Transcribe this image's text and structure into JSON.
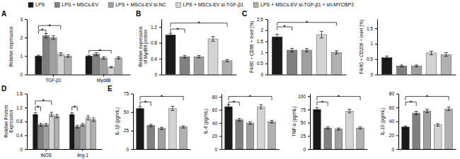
{
  "chart_data": [
    {
      "type": "bar",
      "title": "A",
      "categories": [
        "TGF-β1",
        "Myd88"
      ],
      "series": [
        {
          "name": "LPS",
          "color": "#1a1a1a",
          "values": [
            1.0,
            1.0
          ],
          "errors": [
            0.05,
            0.05
          ]
        },
        {
          "name": "LPS + MSCs-EV",
          "color": "#808080",
          "values": [
            2.1,
            1.1
          ],
          "errors": [
            0.12,
            0.08
          ]
        },
        {
          "name": "LPS + MSCs-EV si-NC",
          "color": "#a0a0a0",
          "values": [
            2.0,
            0.9
          ],
          "errors": [
            0.1,
            0.07
          ]
        },
        {
          "name": "LPS + MSCs-EV si-TGF-β1",
          "color": "#d3d3d3",
          "values": [
            1.1,
            0.4
          ],
          "errors": [
            0.08,
            0.04
          ]
        },
        {
          "name": "LPS + MSCs-EV si-TGF-β1 + sh-MYCBP2",
          "color": "#b0b0b0",
          "values": [
            1.0,
            0.9
          ],
          "errors": [
            0.07,
            0.06
          ]
        }
      ],
      "ylabel": "Relative expression",
      "ylim": [
        0,
        3.0
      ],
      "yticks": [
        0,
        1,
        2,
        3
      ],
      "legend": "top",
      "annotations": [
        {
          "text": "*",
          "category": 0,
          "series": [
            0,
            1
          ],
          "y": [
            2.2,
            2.4
          ]
        },
        {
          "text": "*",
          "category": 0,
          "series": [
            0,
            3
          ],
          "y": [
            2.45,
            2.65
          ]
        },
        {
          "text": "*",
          "category": 1,
          "series": [
            0,
            3
          ],
          "y": [
            1.15,
            1.3
          ]
        }
      ]
    },
    {
      "type": "bar",
      "title": "B",
      "categories": [
        "LPS",
        "LPS + MSCs-EV",
        "LPS + MSCs-EV si-NC",
        "LPS + MSCs-EV si-TGF-β1",
        "LPS + MSCs-EV si-TGF-β1 + sh-MYCBP2"
      ],
      "colors": [
        "#1a1a1a",
        "#808080",
        "#a0a0a0",
        "#d3d3d3",
        "#b0b0b0"
      ],
      "values": [
        1.0,
        0.45,
        0.45,
        0.9,
        0.35
      ],
      "errors": [
        0.04,
        0.03,
        0.03,
        0.06,
        0.03
      ],
      "ylabel": "Relative expression\nof Myd88 protein",
      "ylim": [
        0,
        1.4
      ],
      "yticks": [
        0,
        0.4,
        0.8,
        1.2
      ],
      "tick_labels": "y",
      "annotations": [
        {
          "text": "*",
          "categories": [
            0,
            1
          ],
          "y": [
            1.05,
            1.15
          ]
        },
        {
          "text": "*",
          "categories": [
            0,
            4
          ],
          "y": [
            1.2,
            1.3
          ]
        }
      ]
    },
    {
      "type": "bar",
      "title": "C",
      "categories": [
        "LPS",
        "LPS + MSCs-EV",
        "LPS + MSCs-EV si-NC",
        "LPS + MSCs-EV si-TGF-β1",
        "LPS + MSCs-EV si-TGF-β1 + sh-MYCBP2"
      ],
      "colors": [
        "#1a1a1a",
        "#808080",
        "#a0a0a0",
        "#d3d3d3",
        "#b0b0b0"
      ],
      "values": [
        1.7,
        1.1,
        1.1,
        1.8,
        1.0
      ],
      "errors": [
        0.12,
        0.08,
        0.07,
        0.15,
        0.07
      ],
      "ylabel": "F4/80 + CD86 + level (%)",
      "ylim": [
        0,
        2.5
      ],
      "yticks": [
        0,
        0.5,
        1,
        1.5,
        2,
        2.5
      ],
      "tick_labels": "y",
      "annotations": [
        {
          "text": "*",
          "categories": [
            0,
            1
          ],
          "y": [
            2.0,
            2.15
          ]
        },
        {
          "text": "*",
          "categories": [
            0,
            4
          ],
          "y": [
            2.2,
            2.35
          ]
        }
      ]
    },
    {
      "type": "bar",
      "categories": [
        "LPS",
        "LPS + MSCs-EV",
        "LPS + MSCs-EV si-NC",
        "LPS + MSCs-EV si-TGF-β1",
        "LPS + MSCs-EV si-TGF-β1 + sh-MYCBP2"
      ],
      "colors": [
        "#1a1a1a",
        "#808080",
        "#a0a0a0",
        "#d3d3d3",
        "#b0b0b0"
      ],
      "values": [
        0.55,
        0.28,
        0.28,
        0.7,
        0.65
      ],
      "errors": [
        0.05,
        0.03,
        0.03,
        0.06,
        0.06
      ],
      "ylabel": "F4/80 + CD206 + level (%)",
      "ylim": [
        0,
        1.8
      ],
      "yticks": [
        0,
        0.5,
        1,
        1.5
      ],
      "tick_labels": "y"
    },
    {
      "type": "bar",
      "title": "D",
      "categories": [
        "iNOS",
        "Arg-1"
      ],
      "series": [
        {
          "name": "LPS",
          "color": "#1a1a1a",
          "values": [
            1.0,
            1.0
          ],
          "errors": [
            0.05,
            0.05
          ]
        },
        {
          "name": "LPS + MSCs-EV",
          "color": "#808080",
          "values": [
            0.7,
            0.65
          ],
          "errors": [
            0.04,
            0.04
          ]
        },
        {
          "name": "LPS + MSCs-EV si-NC",
          "color": "#a0a0a0",
          "values": [
            0.7,
            0.7
          ],
          "errors": [
            0.04,
            0.04
          ]
        },
        {
          "name": "LPS + MSCs-EV si-TGF-β1",
          "color": "#d3d3d3",
          "values": [
            1.0,
            0.9
          ],
          "errors": [
            0.06,
            0.06
          ]
        },
        {
          "name": "LPS + MSCs-EV si-TGF-β1 + sh-MYCBP2",
          "color": "#b0b0b0",
          "values": [
            0.95,
            0.85
          ],
          "errors": [
            0.05,
            0.05
          ]
        }
      ],
      "ylabel": "Relative Protein\nExpression",
      "ylim": [
        0,
        1.6
      ],
      "yticks": [
        0,
        0.4,
        0.8,
        1.2,
        1.6
      ],
      "annotations": [
        {
          "text": "*",
          "category": 0,
          "series": [
            0,
            1
          ],
          "y": [
            1.1,
            1.22
          ]
        },
        {
          "text": "*",
          "category": 0,
          "series": [
            0,
            3
          ],
          "y": [
            1.27,
            1.39
          ]
        },
        {
          "text": "*",
          "category": 1,
          "series": [
            0,
            1
          ],
          "y": [
            1.1,
            1.22
          ]
        }
      ]
    },
    {
      "type": "bar",
      "title": "E",
      "categories": [
        "LPS",
        "LPS + MSCs-EV",
        "LPS + MSCs-EV si-NC",
        "LPS + MSCs-EV si-TGF-β1",
        "LPS + MSCs-EV si-TGF-β1 + sh-MYCBP2"
      ],
      "colors": [
        "#1a1a1a",
        "#808080",
        "#a0a0a0",
        "#d3d3d3",
        "#b0b0b0"
      ],
      "values": [
        55,
        32,
        28,
        55,
        30
      ],
      "errors": [
        2.5,
        1.5,
        1.5,
        2.8,
        1.5
      ],
      "ylabel": "IL-1β (pg/mL)",
      "ylim": [
        0,
        75
      ],
      "yticks": [
        0,
        25,
        50,
        75
      ],
      "tick_labels": "y",
      "annotations": [
        {
          "text": "*",
          "categories": [
            0,
            1
          ],
          "y": [
            58.5,
            63.75
          ]
        },
        {
          "text": "*",
          "categories": [
            0,
            4
          ],
          "y": [
            66,
            71.25
          ]
        }
      ]
    },
    {
      "type": "bar",
      "categories": [
        "LPS",
        "LPS + MSCs-EV",
        "LPS + MSCs-EV si-NC",
        "LPS + MSCs-EV si-TGF-β1",
        "LPS + MSCs-EV si-TGF-β1 + sh-MYCBP2"
      ],
      "colors": [
        "#1a1a1a",
        "#808080",
        "#a0a0a0",
        "#d3d3d3",
        "#b0b0b0"
      ],
      "values": [
        65,
        45,
        40,
        65,
        42
      ],
      "errors": [
        3.0,
        2.0,
        2.0,
        3.2,
        2.0
      ],
      "ylabel": "IL-6 (pg/mL)",
      "ylim": [
        0,
        85
      ],
      "yticks": [
        0,
        20,
        40,
        60,
        80
      ],
      "tick_labels": "y",
      "annotations": [
        {
          "text": "*",
          "categories": [
            0,
            1
          ],
          "y": [
            66.3,
            72.25
          ]
        },
        {
          "text": "*",
          "categories": [
            0,
            4
          ],
          "y": [
            74.8,
            80.75
          ]
        }
      ]
    },
    {
      "type": "bar",
      "categories": [
        "LPS",
        "LPS + MSCs-EV",
        "LPS + MSCs-EV si-NC",
        "LPS + MSCs-EV si-TGF-β1",
        "LPS + MSCs-EV si-TGF-β1 + sh-MYCBP2"
      ],
      "colors": [
        "#1a1a1a",
        "#808080",
        "#a0a0a0",
        "#d3d3d3",
        "#b0b0b0"
      ],
      "values": [
        75,
        40,
        38,
        72,
        40
      ],
      "errors": [
        3.5,
        2.0,
        2.0,
        3.5,
        2.0
      ],
      "ylabel": "TNF-α (pg/mL)",
      "ylim": [
        0,
        105
      ],
      "yticks": [
        0,
        25,
        50,
        75,
        100
      ],
      "tick_labels": "y",
      "annotations": [
        {
          "text": "*",
          "categories": [
            0,
            1
          ],
          "y": [
            81.9,
            89.25
          ]
        },
        {
          "text": "*",
          "categories": [
            0,
            4
          ],
          "y": [
            92.4,
            99.75
          ]
        }
      ]
    },
    {
      "type": "bar",
      "categories": [
        "LPS",
        "LPS + MSCs-EV",
        "LPS + MSCs-EV si-NC",
        "LPS + MSCs-EV si-TGF-β1",
        "LPS + MSCs-EV si-TGF-β1 + sh-MYCBP2"
      ],
      "colors": [
        "#1a1a1a",
        "#808080",
        "#a0a0a0",
        "#d3d3d3",
        "#b0b0b0"
      ],
      "values": [
        32,
        52,
        55,
        35,
        58
      ],
      "errors": [
        1.5,
        2.5,
        2.5,
        1.8,
        2.5
      ],
      "ylabel": "IL-10 (pg/mL)",
      "ylim": [
        0,
        80
      ],
      "yticks": [
        0,
        20,
        40,
        60,
        80
      ],
      "tick_labels": "y",
      "annotations": [
        {
          "text": "*",
          "categories": [
            0,
            1
          ],
          "y": [
            62.4,
            68
          ]
        },
        {
          "text": "*",
          "categories": [
            0,
            4
          ],
          "y": [
            70.4,
            76
          ]
        }
      ]
    }
  ]
}
